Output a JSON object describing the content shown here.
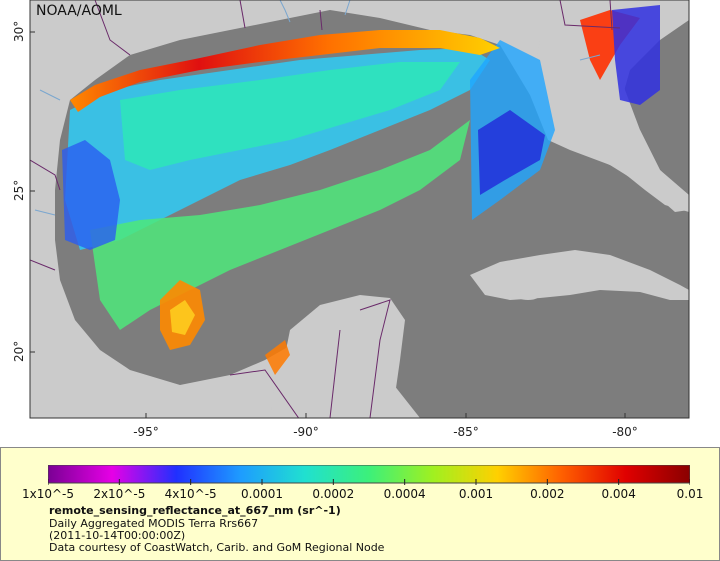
{
  "map": {
    "credit": "NOAA/AOML",
    "lat_ticks": [
      {
        "value": 30,
        "label": "30°"
      },
      {
        "value": 25,
        "label": "25°"
      },
      {
        "value": 20,
        "label": "20°"
      }
    ],
    "lon_ticks": [
      {
        "value": -95,
        "label": "-95°"
      },
      {
        "value": -90,
        "label": "-90°"
      },
      {
        "value": -85,
        "label": "-85°"
      },
      {
        "value": -80,
        "label": "-80°"
      }
    ],
    "colors": {
      "land": "#cbcbcb",
      "no_data": "#7d7d7d",
      "borders": "#6a2a6a",
      "rivers": "#7aa6cf"
    }
  },
  "legend": {
    "colorbar_labels": [
      "1x10^-5",
      "2x10^-5",
      "4x10^-5",
      "0.0001",
      "0.0002",
      "0.0004",
      "0.001",
      "0.002",
      "0.004",
      "0.01"
    ],
    "colorbar_stops": [
      "#7a0094",
      "#e600e6",
      "#2030ff",
      "#1e9cff",
      "#20e0d0",
      "#3cf07a",
      "#a0f020",
      "#ffd000",
      "#ff6000",
      "#e00000",
      "#8a0000"
    ],
    "variable": "remote_sensing_reflectance_at_667_nm (sr^-1)",
    "line1": "Daily Aggregated MODIS Terra Rrs667",
    "line2": "(2011-10-14T00:00:00Z)",
    "line3": "Data courtesy of CoastWatch, Carib. and GoM Regional Node"
  }
}
